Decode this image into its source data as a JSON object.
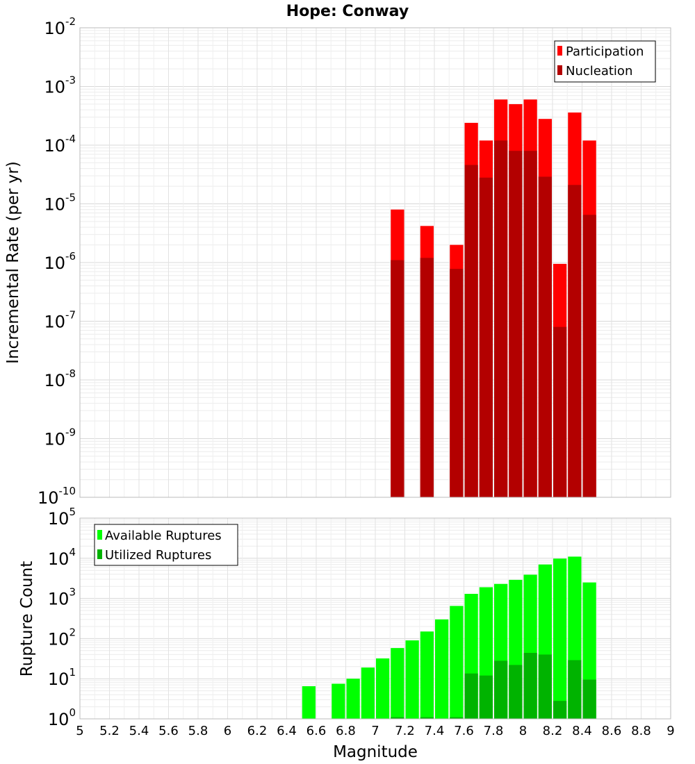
{
  "chart_data": [
    {
      "type": "bar",
      "title": "Hope: Conway",
      "xlabel": "",
      "ylabel": "Incremental Rate (per yr)",
      "yscale": "log",
      "ylim": [
        1e-10,
        0.01
      ],
      "xlim": [
        5,
        9
      ],
      "grid": true,
      "legend_position": "top-right",
      "bar_width": 0.1,
      "series": [
        {
          "name": "Participation",
          "color": "#ff0000",
          "x": [
            7.1,
            7.3,
            7.5,
            7.6,
            7.7,
            7.8,
            7.9,
            8.0,
            8.1,
            8.2,
            8.3,
            8.4
          ],
          "values": [
            8e-06,
            4.2e-06,
            2e-06,
            0.00024,
            0.00012,
            0.0006,
            0.0005,
            0.0006,
            0.00028,
            9.5e-07,
            0.00036,
            0.00012
          ]
        },
        {
          "name": "Nucleation",
          "color": "#b30000",
          "x": [
            7.1,
            7.3,
            7.5,
            7.6,
            7.7,
            7.8,
            7.9,
            8.0,
            8.1,
            8.2,
            8.3,
            8.4
          ],
          "values": [
            1.1e-06,
            1.2e-06,
            7.8e-07,
            4.6e-05,
            2.8e-05,
            0.00012,
            8e-05,
            8e-05,
            2.9e-05,
            8e-08,
            2.1e-05,
            6.5e-06
          ]
        }
      ]
    },
    {
      "type": "bar",
      "title": "",
      "xlabel": "Magnitude",
      "ylabel": "Rupture Count",
      "yscale": "log",
      "ylim": [
        1,
        100000
      ],
      "xlim": [
        5,
        9
      ],
      "grid": true,
      "legend_position": "top-left",
      "bar_width": 0.1,
      "x_ticks": [
        "5",
        "5.2",
        "5.4",
        "5.6",
        "5.8",
        "6",
        "6.2",
        "6.4",
        "6.6",
        "6.8",
        "7",
        "7.2",
        "7.4",
        "7.6",
        "7.8",
        "8",
        "8.2",
        "8.4",
        "8.6",
        "8.8",
        "9"
      ],
      "series": [
        {
          "name": "Available Ruptures",
          "color": "#00ff00",
          "x": [
            6.5,
            6.7,
            6.8,
            6.9,
            7.0,
            7.1,
            7.2,
            7.3,
            7.4,
            7.5,
            7.6,
            7.7,
            7.8,
            7.9,
            8.0,
            8.1,
            8.2,
            8.3,
            8.4
          ],
          "values": [
            6.5,
            7.5,
            10,
            19,
            32,
            58,
            90,
            150,
            300,
            650,
            1300,
            1900,
            2300,
            2900,
            3900,
            7000,
            9800,
            11000,
            2500
          ]
        },
        {
          "name": "Utilized Ruptures",
          "color": "#00b300",
          "x": [
            7.1,
            7.3,
            7.5,
            7.6,
            7.7,
            7.8,
            7.9,
            8.0,
            8.1,
            8.2,
            8.3,
            8.4
          ],
          "values": [
            1.1,
            1.1,
            1.1,
            13.5,
            12,
            28,
            22,
            44,
            40,
            2.8,
            29,
            9.5
          ]
        }
      ]
    }
  ]
}
